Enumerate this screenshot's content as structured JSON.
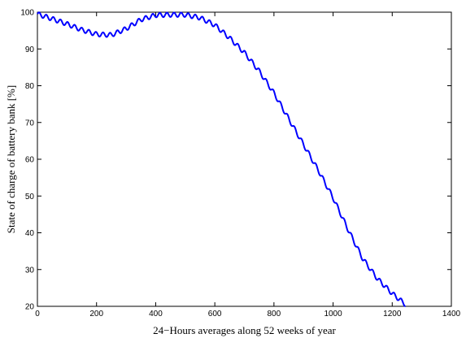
{
  "chart_data": {
    "type": "line",
    "title": "",
    "xlabel": "24−Hours averages along 52 weeks of year",
    "ylabel": "State of charge of battery bank [%]",
    "xlim": [
      0,
      1400
    ],
    "ylim": [
      20,
      100
    ],
    "xticks": [
      0,
      200,
      400,
      600,
      800,
      1000,
      1200,
      1400
    ],
    "yticks": [
      20,
      30,
      40,
      50,
      60,
      70,
      80,
      90,
      100
    ],
    "grid": false,
    "legend": "none",
    "line_color": "#0000ff",
    "series": [
      {
        "x": [
          0,
          50,
          100,
          150,
          200,
          250,
          300,
          350,
          400,
          450,
          500,
          550,
          600,
          650,
          700,
          750,
          800,
          850,
          900,
          950,
          1000,
          1050,
          1100,
          1150,
          1200,
          1245
        ],
        "y": [
          99.5,
          98.2,
          96.8,
          95.2,
          94.0,
          93.8,
          95.5,
          98.0,
          99.2,
          99.3,
          99.3,
          98.5,
          96.5,
          93.0,
          89.0,
          84.0,
          78.0,
          71.0,
          64.0,
          57.0,
          49.5,
          41.0,
          33.0,
          27.5,
          23.5,
          20.5
        ]
      }
    ]
  }
}
